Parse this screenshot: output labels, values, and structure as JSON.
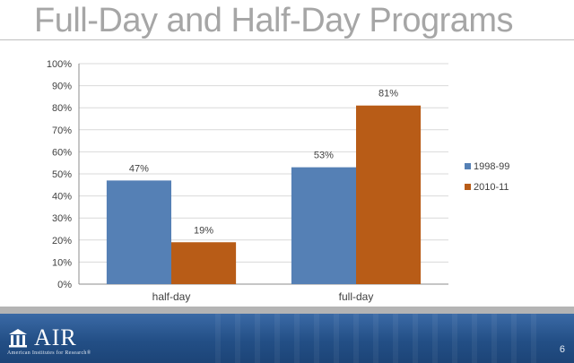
{
  "slide": {
    "title": "Full-Day and Half-Day Programs",
    "page_number": "6"
  },
  "footer": {
    "logo_text": "AIR",
    "logo_tagline": "American Institutes for Research®"
  },
  "colors": {
    "series_1998": "#5580b5",
    "series_2010": "#b85c17",
    "title": "#a6a6a6",
    "gridline": "#d9d9d9",
    "footer": "#234f86"
  },
  "chart_data": {
    "type": "bar",
    "title": "",
    "xlabel": "",
    "ylabel": "",
    "categories": [
      "half-day",
      "full-day"
    ],
    "series": [
      {
        "name": "1998-99",
        "values": [
          47,
          53
        ],
        "labels": [
          "47%",
          "53%"
        ],
        "color": "#5580b5"
      },
      {
        "name": "2010-11",
        "values": [
          19,
          81
        ],
        "labels": [
          "19%",
          "81%"
        ],
        "color": "#b85c17"
      }
    ],
    "ylim": [
      0,
      100
    ],
    "yticks": [
      0,
      10,
      20,
      30,
      40,
      50,
      60,
      70,
      80,
      90,
      100
    ],
    "ytick_labels": [
      "0%",
      "10%",
      "20%",
      "30%",
      "40%",
      "50%",
      "60%",
      "70%",
      "80%",
      "90%",
      "100%"
    ],
    "grid": true,
    "legend_position": "right"
  }
}
